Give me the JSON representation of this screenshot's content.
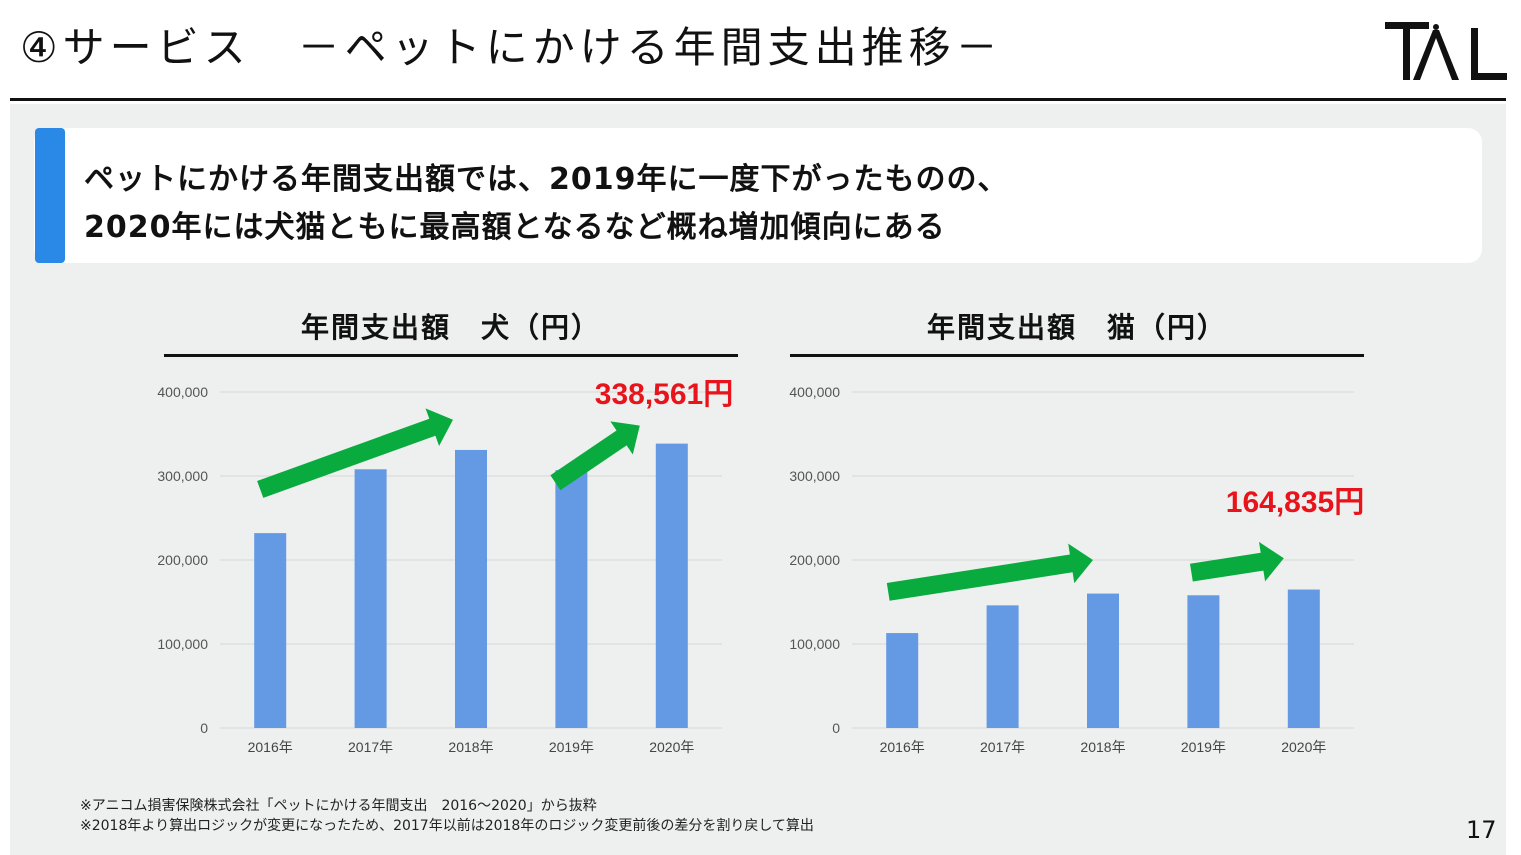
{
  "header": {
    "title": "④サービス　－ペットにかける年間支出推移－",
    "logo_text": "TAL"
  },
  "message": {
    "line1": "ペットにかける年間支出額では、2019年に一度下がったものの、",
    "line2": "2020年には犬猫ともに最高額となるなど概ね増加傾向にある"
  },
  "chart_data": [
    {
      "type": "bar",
      "title": "年間支出額　犬（円）",
      "categories": [
        "2016年",
        "2017年",
        "2018年",
        "2019年",
        "2020年"
      ],
      "values": [
        232000,
        308000,
        331000,
        307000,
        338561
      ],
      "ylim": [
        0,
        400000
      ],
      "yticks": [
        "0",
        "100,000",
        "200,000",
        "300,000",
        "400,000"
      ],
      "highlight": "338,561円",
      "bar_color": "#6499e3",
      "arrow_color": "#0aab3e",
      "highlight_color": "#e8141b"
    },
    {
      "type": "bar",
      "title": "年間支出額　猫（円）",
      "categories": [
        "2016年",
        "2017年",
        "2018年",
        "2019年",
        "2020年"
      ],
      "values": [
        113000,
        146000,
        160000,
        158000,
        164835
      ],
      "ylim": [
        0,
        400000
      ],
      "yticks": [
        "0",
        "100,000",
        "200,000",
        "300,000",
        "400,000"
      ],
      "highlight": "164,835円",
      "bar_color": "#6499e3",
      "arrow_color": "#0aab3e",
      "highlight_color": "#e8141b"
    }
  ],
  "footnotes": {
    "note1": "※アニコム損害保険株式会社「ペットにかける年間支出　2016～2020」から抜粋",
    "note2": "※2018年より算出ロジックが変更になったため、2017年以前は2018年のロジック変更前後の差分を割り戻して算出"
  },
  "page_number": "17"
}
